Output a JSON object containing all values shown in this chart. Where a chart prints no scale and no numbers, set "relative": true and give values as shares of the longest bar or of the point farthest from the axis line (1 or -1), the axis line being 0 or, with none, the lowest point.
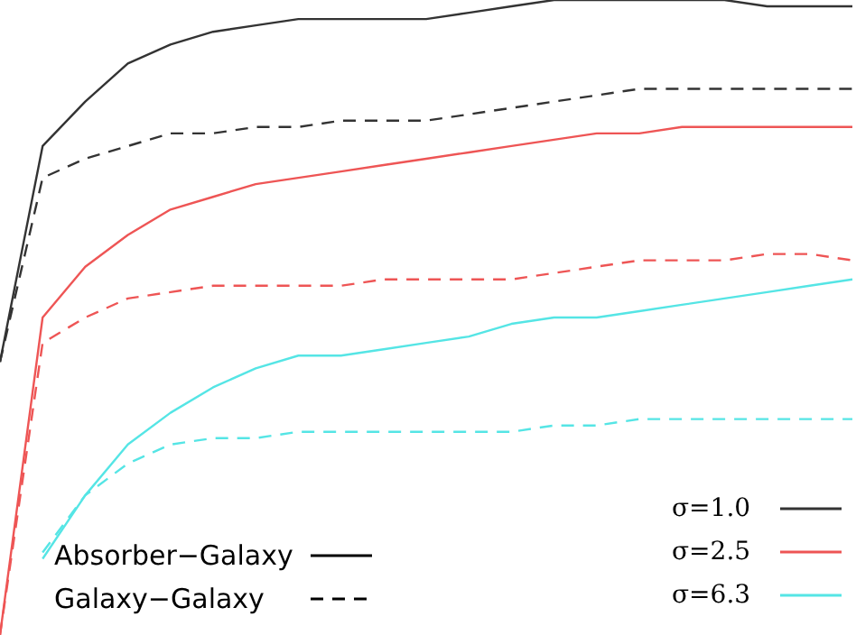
{
  "chart_data": {
    "type": "line",
    "relative": true,
    "categories": [
      null,
      null,
      null,
      null,
      null,
      null,
      null,
      null,
      null,
      null,
      null,
      null,
      null,
      null,
      null,
      null,
      null,
      null,
      null,
      null,
      null
    ],
    "series": [
      {
        "color": "#333333",
        "line_style": "solid",
        "values": [
          0.43,
          0.77,
          0.84,
          0.9,
          0.93,
          0.95,
          0.96,
          0.97,
          0.97,
          0.97,
          0.97,
          0.98,
          0.99,
          1,
          1,
          1,
          1,
          1,
          0.99,
          0.99,
          0.99
        ]
      },
      {
        "color": "#333333",
        "line_style": "dashed",
        "values": [
          0.43,
          0.72,
          0.75,
          0.77,
          0.79,
          0.79,
          0.8,
          0.8,
          0.81,
          0.81,
          0.81,
          0.82,
          0.83,
          0.84,
          0.85,
          0.86,
          0.86,
          0.86,
          0.86,
          0.86,
          0.86
        ]
      },
      {
        "color": "#ee5555",
        "line_style": "solid",
        "values": [
          0,
          0.5,
          0.58,
          0.63,
          0.67,
          0.69,
          0.71,
          0.72,
          0.73,
          0.74,
          0.75,
          0.76,
          0.77,
          0.78,
          0.79,
          0.79,
          0.8,
          0.8,
          0.8,
          0.8,
          0.8
        ]
      },
      {
        "color": "#ee5555",
        "line_style": "dashed",
        "values": [
          0,
          0.46,
          0.5,
          0.53,
          0.54,
          0.55,
          0.55,
          0.55,
          0.55,
          0.56,
          0.56,
          0.56,
          0.56,
          0.57,
          0.58,
          0.59,
          0.59,
          0.59,
          0.6,
          0.6,
          0.59
        ]
      },
      {
        "color": "#55e5e5",
        "line_style": "solid",
        "values": [
          null,
          0.12,
          0.22,
          0.3,
          0.35,
          0.39,
          0.42,
          0.44,
          0.44,
          0.45,
          0.46,
          0.47,
          0.49,
          0.5,
          0.5,
          0.51,
          0.52,
          0.53,
          0.54,
          0.55,
          0.56
        ]
      },
      {
        "color": "#55e5e5",
        "line_style": "dashed",
        "values": [
          null,
          0.13,
          0.22,
          0.27,
          0.3,
          0.31,
          0.31,
          0.32,
          0.32,
          0.32,
          0.32,
          0.32,
          0.32,
          0.33,
          0.33,
          0.34,
          0.34,
          0.34,
          0.34,
          0.34,
          0.34
        ]
      }
    ],
    "annotations": [
      "Absorber−Galaxy",
      "Galaxy−Galaxy",
      "σ=1.0",
      "σ=2.5",
      "σ=6.3"
    ],
    "legend": false,
    "grid": false,
    "marker": "none"
  }
}
